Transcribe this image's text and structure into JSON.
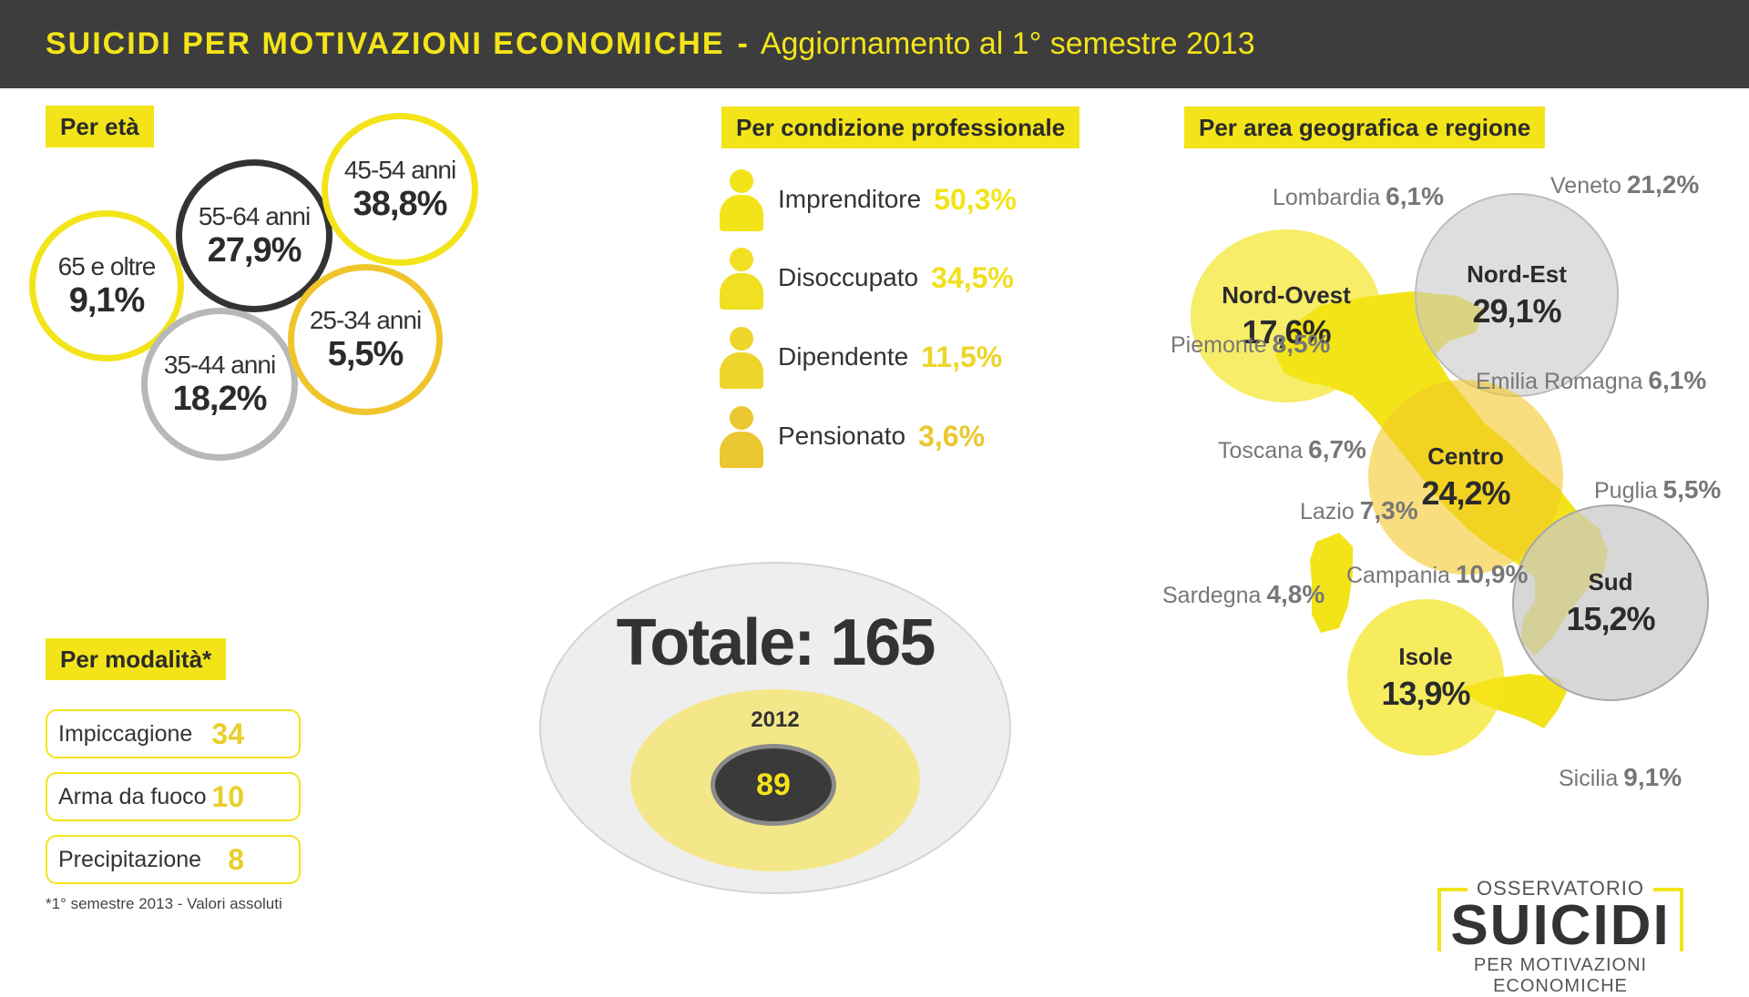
{
  "header": {
    "title_bold": "SUICIDI PER MOTIVAZIONI ECONOMICHE",
    "separator": "-",
    "title_rest": "Aggiornamento al 1° semestre 2013"
  },
  "age": {
    "heading": "Per età",
    "groups": [
      {
        "label": "65 e oltre",
        "value": "9,1%"
      },
      {
        "label": "55-64 anni",
        "value": "27,9%"
      },
      {
        "label": "45-54 anni",
        "value": "38,8%"
      },
      {
        "label": "35-44 anni",
        "value": "18,2%"
      },
      {
        "label": "25-34 anni",
        "value": "5,5%"
      }
    ]
  },
  "profession": {
    "heading": "Per condizione professionale",
    "items": [
      {
        "label": "Imprenditore",
        "value": "50,3%",
        "color": "#f3e419"
      },
      {
        "label": "Disoccupato",
        "value": "34,5%",
        "color": "#f1df22"
      },
      {
        "label": "Dipendente",
        "value": "11,5%",
        "color": "#edd52b"
      },
      {
        "label": "Pensionato",
        "value": "3,6%",
        "color": "#ebc731"
      }
    ]
  },
  "mode": {
    "heading": "Per modalità*",
    "items": [
      {
        "label": "Impiccagione",
        "value": "34"
      },
      {
        "label": "Arma da fuoco",
        "value": "10"
      },
      {
        "label": "Precipitazione",
        "value": "8"
      }
    ],
    "note": "*1° semestre 2013 - Valori assoluti"
  },
  "total": {
    "label": "Totale: 165",
    "prev_year": "2012",
    "prev_value": "89"
  },
  "geo": {
    "heading": "Per area geografica e regione",
    "areas": [
      {
        "name": "Nord-Ovest",
        "value": "17,6%"
      },
      {
        "name": "Nord-Est",
        "value": "29,1%"
      },
      {
        "name": "Centro",
        "value": "24,2%"
      },
      {
        "name": "Sud",
        "value": "15,2%"
      },
      {
        "name": "Isole",
        "value": "13,9%"
      }
    ],
    "regions": [
      {
        "name": "Lombardia",
        "value": "6,1%"
      },
      {
        "name": "Veneto",
        "value": "21,2%"
      },
      {
        "name": "Piemonte",
        "value": "8,5%"
      },
      {
        "name": "Emilia Romagna",
        "value": "6,1%"
      },
      {
        "name": "Toscana",
        "value": "6,7%"
      },
      {
        "name": "Puglia",
        "value": "5,5%"
      },
      {
        "name": "Lazio",
        "value": "7,3%"
      },
      {
        "name": "Campania",
        "value": "10,9%"
      },
      {
        "name": "Sardegna",
        "value": "4,8%"
      },
      {
        "name": "Sicilia",
        "value": "9,1%"
      }
    ]
  },
  "logo": {
    "line1": "OSSERVATORIO",
    "line2": "SUICIDI",
    "line3": "PER MOTIVAZIONI ECONOMICHE"
  },
  "colors": {
    "accent": "#f3e419",
    "header_bg": "#3d3d3d",
    "dark_ring": "#333333",
    "grey_ring": "#b8b8b8"
  }
}
